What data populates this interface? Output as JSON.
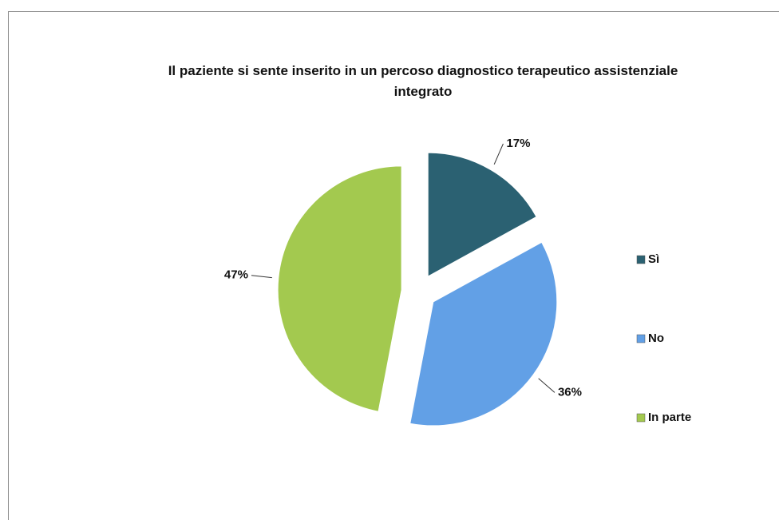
{
  "chart_data": {
    "type": "pie",
    "title": "Il paziente si sente inserito in un percoso diagnostico terapeutico assistenziale integrato",
    "categories": [
      "Sì",
      "No",
      "In parte"
    ],
    "values": [
      17,
      36,
      47
    ],
    "value_labels": [
      "17%",
      "36%",
      "47%"
    ],
    "colors": [
      "#2b6172",
      "#62a0e6",
      "#a3c94f"
    ],
    "legend": "right"
  }
}
